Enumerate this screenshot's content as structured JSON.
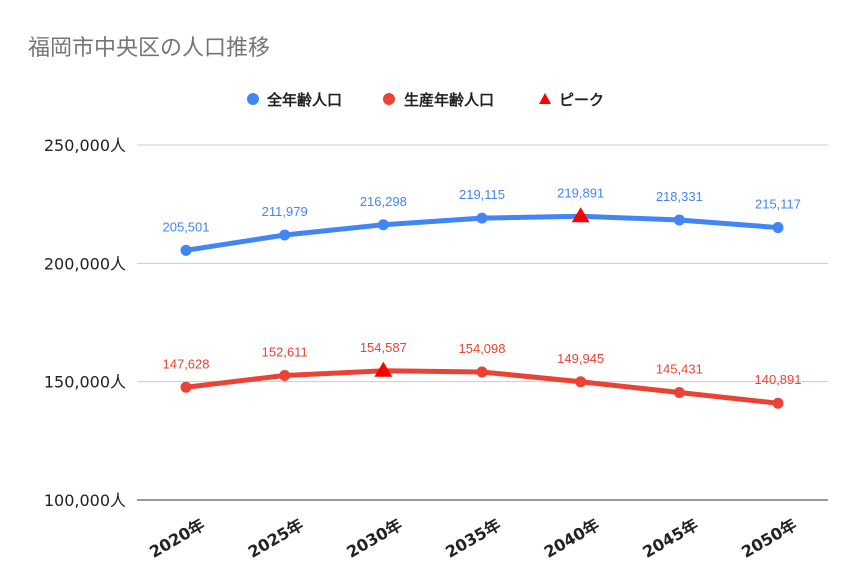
{
  "chart_data": {
    "type": "line",
    "title": "福岡市中央区の人口推移",
    "xlabel": "",
    "ylabel": "",
    "categories": [
      "2020年",
      "2025年",
      "2030年",
      "2035年",
      "2040年",
      "2045年",
      "2050年"
    ],
    "ylim": [
      100000,
      250000
    ],
    "yticks": [
      100000,
      150000,
      200000,
      250000
    ],
    "ytick_labels": [
      "100,000人",
      "150,000人",
      "200,000人",
      "250,000人"
    ],
    "grid": true,
    "legend_position": "top",
    "series": [
      {
        "name": "全年齢人口",
        "color": "#4285f4",
        "values": [
          205501,
          211979,
          216298,
          219115,
          219891,
          218331,
          215117
        ],
        "labels": [
          "205,501",
          "211,979",
          "216,298",
          "219,115",
          "219,891",
          "218,331",
          "215,117"
        ],
        "peak_index": 4
      },
      {
        "name": "生産年齢人口",
        "color": "#ea4335",
        "values": [
          147628,
          152611,
          154587,
          154098,
          149945,
          145431,
          140891
        ],
        "labels": [
          "147,628",
          "152,611",
          "154,587",
          "154,098",
          "149,945",
          "145,431",
          "140,891"
        ],
        "peak_index": 2
      }
    ],
    "peak_legend": {
      "name": "ピーク",
      "color": "#ff0000"
    }
  }
}
